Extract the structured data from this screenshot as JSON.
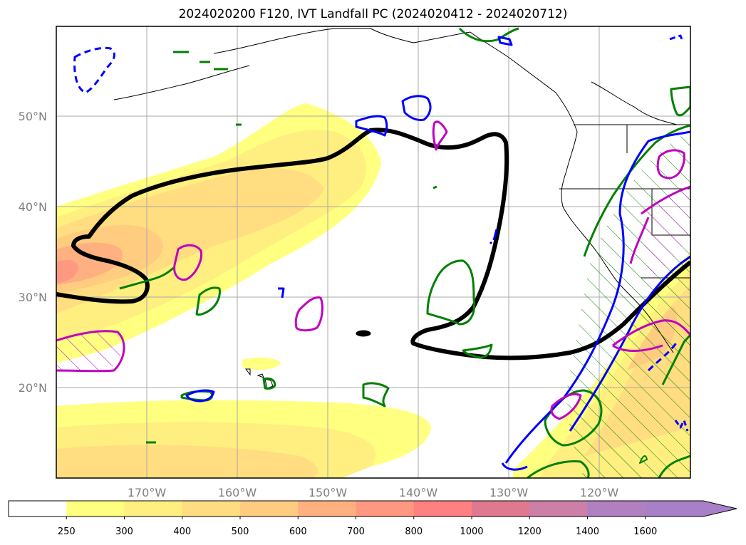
{
  "title": "2024020200 F120, IVT Landfall PC (2024020412 - 2024020712)",
  "lat_labels": [
    "50°N",
    "40°N",
    "30°N",
    "20°N"
  ],
  "lon_labels": [
    "170°W",
    "160°W",
    "150°W",
    "140°W",
    "130°W",
    "120°W"
  ],
  "colorbar": {
    "ticks": [
      "250",
      "300",
      "400",
      "500",
      "600",
      "700",
      "800",
      "1000",
      "1200",
      "1400",
      "1600"
    ],
    "colors": [
      "#ffffff",
      "#ffff80",
      "#ffee80",
      "#ffdd80",
      "#ffcc80",
      "#ffb080",
      "#ff9880",
      "#ff8080",
      "#e07890",
      "#cc80a8",
      "#b080c0",
      "#a880c8"
    ],
    "extend": "max"
  },
  "contour_colors": {
    "thick_black": "#000000",
    "green": "#008000",
    "blue": "#0000ff",
    "magenta": "#c000c0"
  }
}
